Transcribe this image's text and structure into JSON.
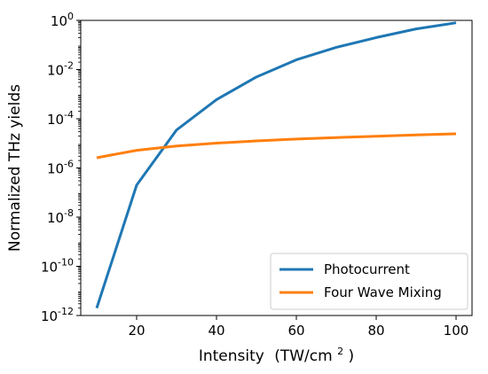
{
  "chart_data": {
    "type": "line",
    "title": "",
    "xlabel": "Intensity",
    "xlabel_unit_base": "(TW/cm",
    "xlabel_unit_exp": "2",
    "xlabel_unit_close": ")",
    "ylabel": "Normalized THz yields",
    "yscale": "log",
    "xlim": [
      6,
      104
    ],
    "ylim": [
      1e-12,
      1
    ],
    "x_ticks": [
      {
        "value": 20,
        "label": "20"
      },
      {
        "value": 40,
        "label": "40"
      },
      {
        "value": 60,
        "label": "60"
      },
      {
        "value": 80,
        "label": "80"
      },
      {
        "value": 100,
        "label": "100"
      }
    ],
    "y_ticks": [
      {
        "value": 1,
        "base": "10",
        "exp": "0"
      },
      {
        "value": 0.01,
        "base": "10",
        "exp": "-2"
      },
      {
        "value": 0.0001,
        "base": "10",
        "exp": "-4"
      },
      {
        "value": 1e-06,
        "base": "10",
        "exp": "-6"
      },
      {
        "value": 1e-08,
        "base": "10",
        "exp": "-8"
      },
      {
        "value": 1e-10,
        "base": "10",
        "exp": "-10"
      },
      {
        "value": 1e-12,
        "base": "10",
        "exp": "-12"
      }
    ],
    "grid": false,
    "legend_position": "lower-right",
    "x": [
      10,
      20,
      30,
      40,
      50,
      60,
      70,
      80,
      90,
      100
    ],
    "series": [
      {
        "name": "Photocurrent",
        "color": "#1f77b4",
        "values": [
          2e-12,
          2e-07,
          3.5e-05,
          0.0006,
          0.005,
          0.025,
          0.08,
          0.2,
          0.45,
          0.8
        ]
      },
      {
        "name": "Four Wave Mixing",
        "color": "#ff7f0e",
        "values": [
          2.6e-06,
          5.2e-06,
          7.8e-06,
          1.02e-05,
          1.25e-05,
          1.5e-05,
          1.72e-05,
          1.95e-05,
          2.2e-05,
          2.45e-05
        ]
      }
    ]
  }
}
